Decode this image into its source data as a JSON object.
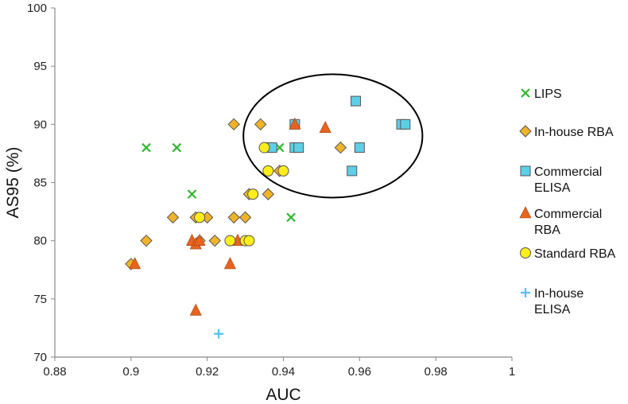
{
  "chart_data": {
    "type": "scatter",
    "title": "",
    "xlabel": "AUC",
    "ylabel": "AS95 (%)",
    "xlim": [
      0.88,
      1.0
    ],
    "ylim": [
      70,
      100
    ],
    "x_ticks": [
      0.88,
      0.9,
      0.92,
      0.94,
      0.96,
      0.98,
      1.0
    ],
    "x_tick_labels": [
      "0.88",
      "0.9",
      "0.92",
      "0.94",
      "0.96",
      "0.98",
      "1"
    ],
    "y_ticks": [
      70,
      75,
      80,
      85,
      90,
      95,
      100
    ],
    "y_tick_labels": [
      "70",
      "75",
      "80",
      "85",
      "90",
      "95",
      "100"
    ],
    "grid": false,
    "legend_position": "right",
    "annotations": [
      {
        "type": "ellipse",
        "note": "highlight region",
        "center": [
          0.953,
          89.0
        ],
        "radius_x": 0.0235,
        "radius_y": 5.3
      }
    ],
    "series": [
      {
        "name": "LIPS",
        "legend_label": [
          "LIPS"
        ],
        "marker": "x",
        "color": "#2db82d",
        "points": [
          [
            0.904,
            88
          ],
          [
            0.912,
            88
          ],
          [
            0.916,
            84
          ],
          [
            0.939,
            88
          ],
          [
            0.942,
            82
          ]
        ]
      },
      {
        "name": "In-house RBA",
        "legend_label": [
          "In-house RBA"
        ],
        "marker": "diamond",
        "color": "#f0b429",
        "points": [
          [
            0.9,
            78
          ],
          [
            0.904,
            80
          ],
          [
            0.911,
            82
          ],
          [
            0.917,
            82
          ],
          [
            0.92,
            82
          ],
          [
            0.918,
            80
          ],
          [
            0.922,
            80
          ],
          [
            0.927,
            82
          ],
          [
            0.93,
            82
          ],
          [
            0.927,
            90
          ],
          [
            0.934,
            90
          ],
          [
            0.931,
            84
          ],
          [
            0.936,
            84
          ],
          [
            0.939,
            86
          ],
          [
            0.955,
            88
          ]
        ]
      },
      {
        "name": "Commercial ELISA",
        "legend_label": [
          "Commercial",
          "ELISA"
        ],
        "marker": "square",
        "color": "#5ecfe8",
        "points": [
          [
            0.936,
            88
          ],
          [
            0.937,
            88
          ],
          [
            0.943,
            90
          ],
          [
            0.943,
            88
          ],
          [
            0.944,
            88
          ],
          [
            0.959,
            92
          ],
          [
            0.958,
            86
          ],
          [
            0.96,
            88
          ],
          [
            0.971,
            90
          ],
          [
            0.972,
            90
          ]
        ]
      },
      {
        "name": "Commercial RBA",
        "legend_label": [
          "Commercial",
          "RBA"
        ],
        "marker": "triangle",
        "color": "#e8641e",
        "points": [
          [
            0.901,
            78
          ],
          [
            0.916,
            80
          ],
          [
            0.917,
            79.7
          ],
          [
            0.918,
            80
          ],
          [
            0.917,
            74
          ],
          [
            0.926,
            78
          ],
          [
            0.928,
            80
          ],
          [
            0.943,
            90
          ],
          [
            0.951,
            89.7
          ]
        ]
      },
      {
        "name": "Standard RBA",
        "legend_label": [
          "Standard RBA"
        ],
        "marker": "circle",
        "color": "#ffee1a",
        "points": [
          [
            0.918,
            82
          ],
          [
            0.926,
            80
          ],
          [
            0.93,
            80
          ],
          [
            0.931,
            80
          ],
          [
            0.932,
            84
          ],
          [
            0.935,
            88
          ],
          [
            0.936,
            86
          ],
          [
            0.94,
            86
          ]
        ]
      },
      {
        "name": "In-house ELISA",
        "legend_label": [
          "In-house",
          "ELISA"
        ],
        "marker": "plus",
        "color": "#4fc3f7",
        "points": [
          [
            0.923,
            72
          ]
        ]
      }
    ]
  }
}
